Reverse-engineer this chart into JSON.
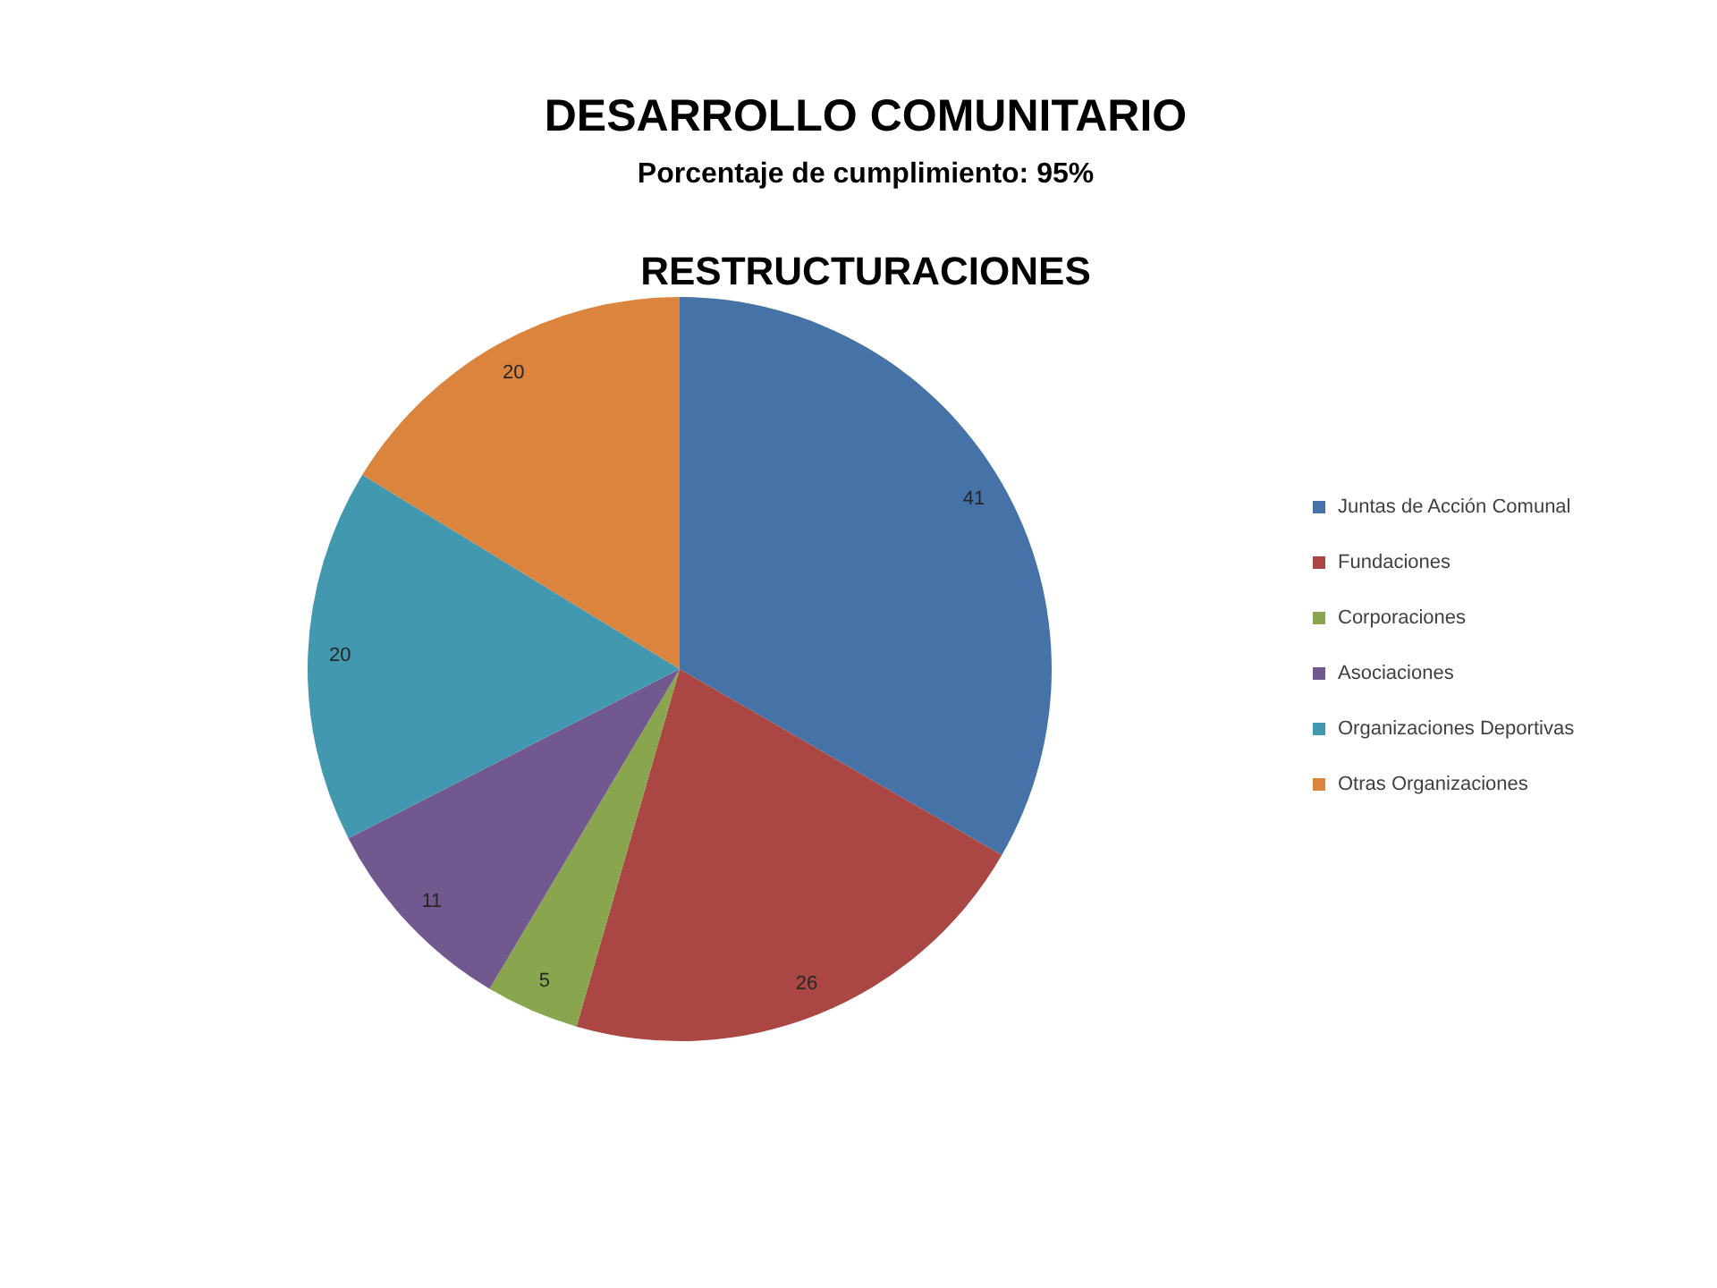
{
  "chart_data": {
    "type": "pie",
    "title": "DESARROLLO COMUNITARIO",
    "subtitle": "Porcentaje de cumplimiento: 95%",
    "annotations": [
      "RESTRUCTURACIONES"
    ],
    "categories": [
      "Juntas de Acción Comunal",
      "Fundaciones",
      "Corporaciones",
      "Asociaciones",
      "Organizaciones Deportivas",
      "Otras Organizaciones"
    ],
    "values": [
      41,
      26,
      5,
      11,
      20,
      20
    ],
    "colors": [
      "#4572a7",
      "#aa4643",
      "#89a54e",
      "#71588f",
      "#4198af",
      "#db843d"
    ],
    "data_labels": true,
    "legend": "right"
  }
}
